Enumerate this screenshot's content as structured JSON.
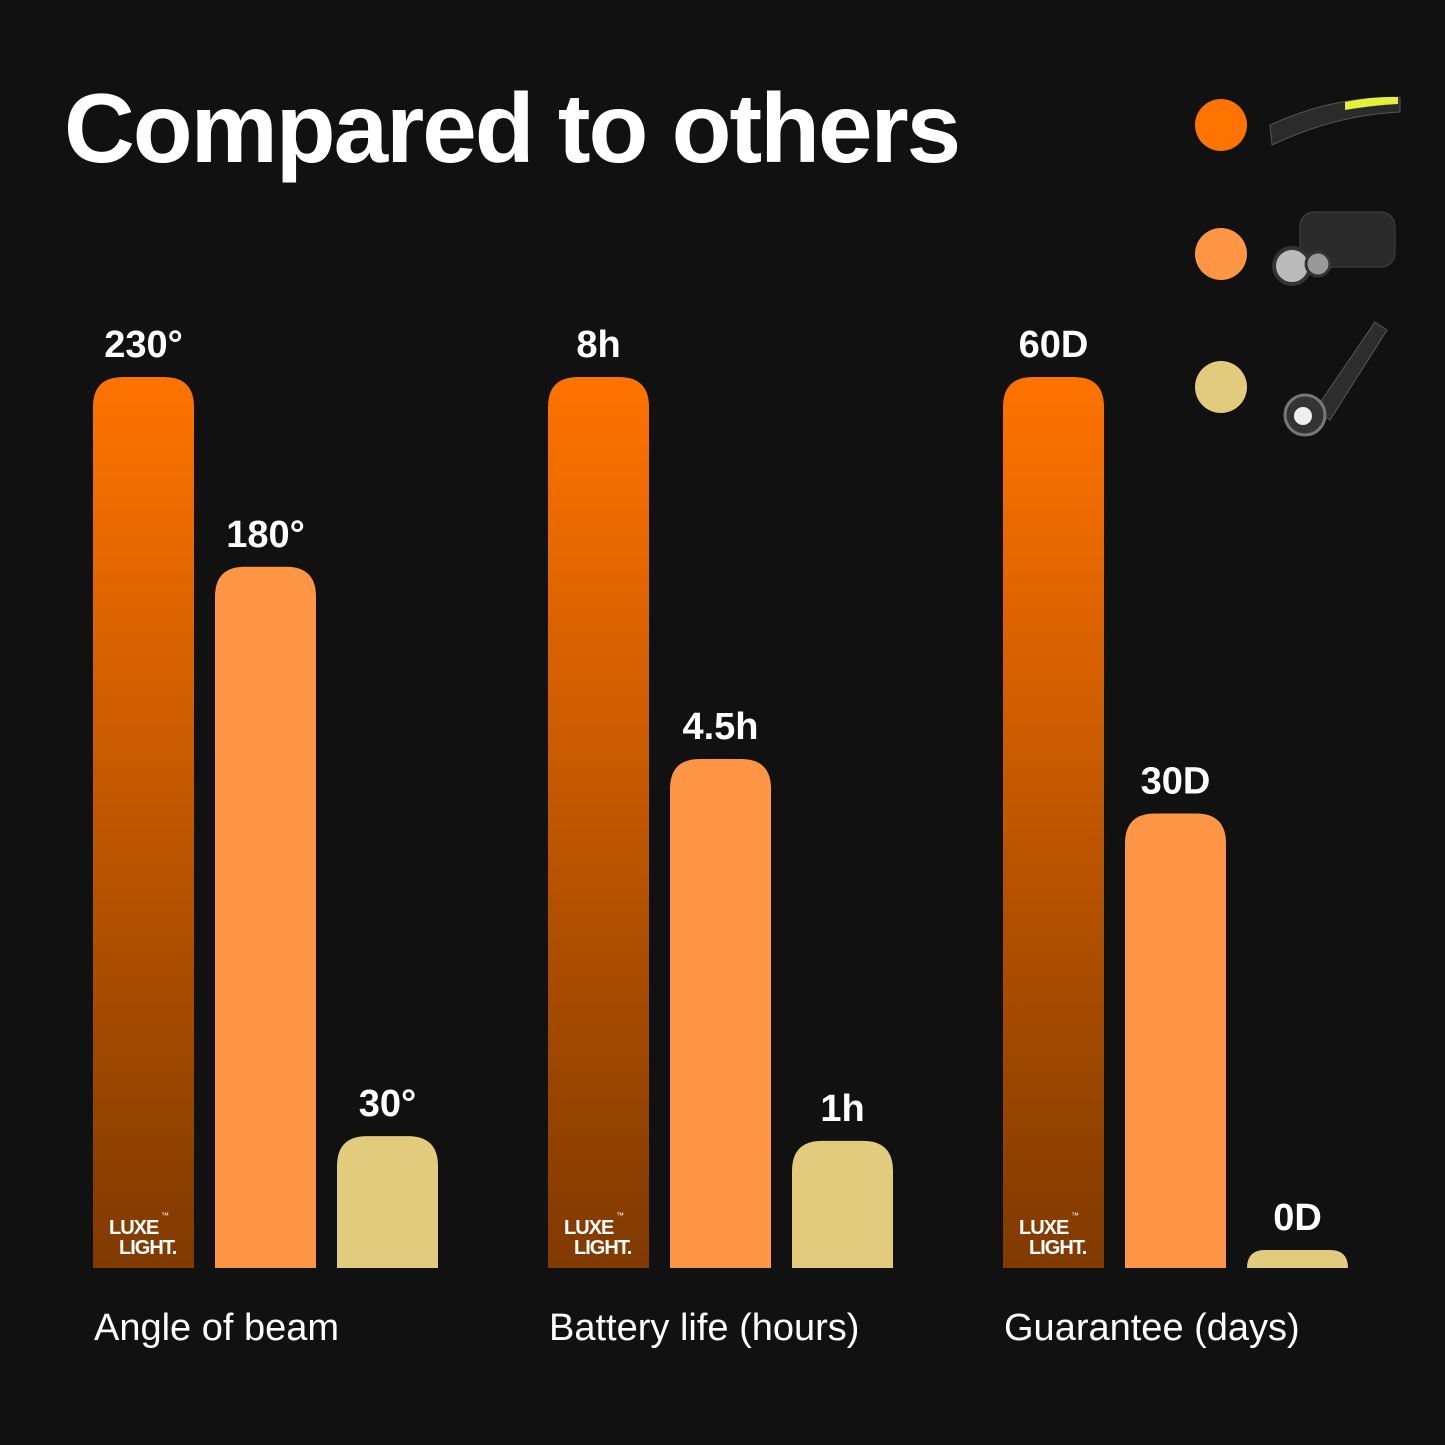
{
  "title": "Compared to others",
  "logo": {
    "line1": "LUXE",
    "mark": "™",
    "line2": "LIGHT."
  },
  "chart_data": [
    {
      "type": "bar",
      "x_label": "Angle of beam",
      "values": [
        230,
        180,
        30
      ],
      "value_labels": [
        "230°",
        "180°",
        "30°"
      ],
      "colors": [
        "#ff7300",
        "#ff9645",
        "#e3cb7e"
      ],
      "ylim": [
        0,
        230
      ]
    },
    {
      "type": "bar",
      "x_label": "Battery life (hours)",
      "values": [
        8,
        4.5,
        1
      ],
      "value_labels": [
        "8h",
        "4.5h",
        "1h"
      ],
      "colors": [
        "#ff7300",
        "#ff9645",
        "#e3cb7e"
      ],
      "ylim": [
        0,
        8
      ]
    },
    {
      "type": "bar",
      "x_label": "Guarantee (days)",
      "values": [
        60,
        30,
        0
      ],
      "value_labels": [
        "60D",
        "30D",
        "0D"
      ],
      "colors": [
        "#ff7300",
        "#ff9645",
        "#e3cb7e"
      ],
      "ylim": [
        0,
        60
      ]
    }
  ]
}
